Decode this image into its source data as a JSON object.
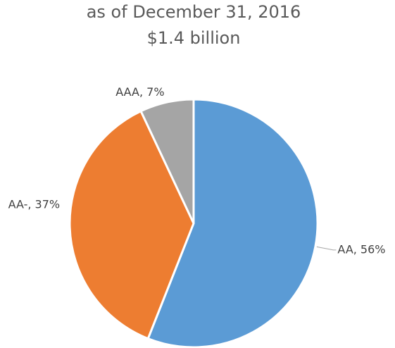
{
  "chart_data": {
    "type": "pie",
    "title": "as of December 31, 2016",
    "subtitle": "$1.4 billion",
    "values": [
      56,
      37,
      7
    ],
    "value_labels": [
      "AA, 56%",
      "AA-, 37%",
      "AAA, 7%"
    ],
    "colors": [
      "#5b9bd5",
      "#ed7d31",
      "#a5a5a5"
    ]
  }
}
